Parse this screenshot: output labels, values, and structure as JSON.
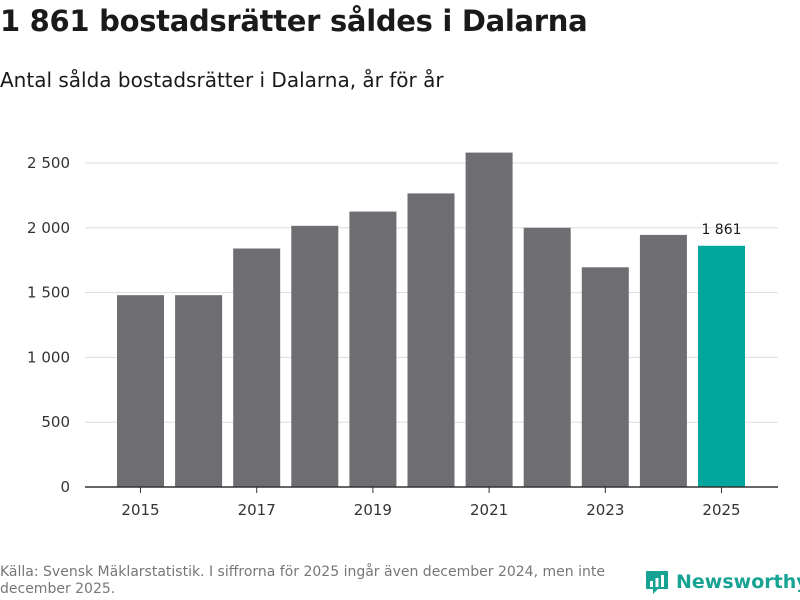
{
  "header": {
    "title": "1 861 bostadsrätter såldes i Dalarna",
    "subtitle": "Antal sålda bostadsrätter i Dalarna, år för år"
  },
  "chart_data": {
    "type": "bar",
    "title": "1 861 bostadsrätter såldes i Dalarna",
    "subtitle": "Antal sålda bostadsrätter i Dalarna, år för år",
    "xlabel": "",
    "ylabel": "",
    "categories": [
      "2015",
      "2016",
      "2017",
      "2018",
      "2019",
      "2020",
      "2021",
      "2022",
      "2023",
      "2024",
      "2025"
    ],
    "values": [
      1480,
      1480,
      1840,
      2015,
      2125,
      2265,
      2580,
      2000,
      1695,
      1945,
      1861
    ],
    "x_tick_labels": [
      "2015",
      "2017",
      "2019",
      "2021",
      "2023",
      "2025"
    ],
    "y_ticks": [
      0,
      500,
      1000,
      1500,
      2000,
      2500
    ],
    "y_tick_labels": [
      "0",
      "500",
      "1 000",
      "1 500",
      "2 000",
      "2 500"
    ],
    "ylim": [
      0,
      2600
    ],
    "grid": true,
    "highlight_category": "2025",
    "annotations": [
      {
        "category": "2025",
        "text": "1 861"
      }
    ],
    "colors": {
      "bar": "#6d6d72",
      "highlight": "#00a59b",
      "grid": "#dddddd",
      "axis": "#333333"
    }
  },
  "footer": {
    "source": "Källa: Svensk Mäklarstatistik. I siffrorna för 2025 ingår även december 2024, men inte december 2025.",
    "brand": "Newsworthy",
    "brand_color": "#16a394",
    "brand_icon": "newsworthy-chart-logo-icon"
  }
}
